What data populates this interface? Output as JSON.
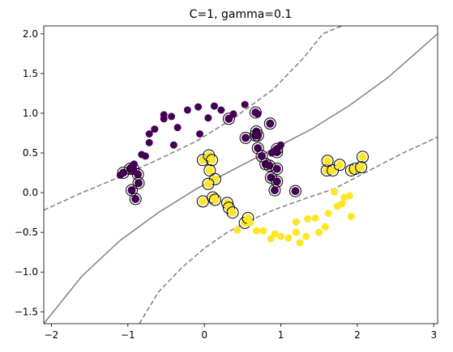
{
  "chart_data": {
    "type": "scatter",
    "title": "C=1, gamma=0.1",
    "xlabel": "",
    "ylabel": "",
    "xlim": [
      -2.1,
      3.05
    ],
    "ylim": [
      -1.65,
      2.1
    ],
    "xticks": [
      -2,
      -1,
      0,
      1,
      2,
      3
    ],
    "yticks": [
      -1.5,
      -1.0,
      -0.5,
      0.0,
      0.5,
      1.0,
      1.5,
      2.0
    ],
    "xtick_labels": [
      "−2",
      "−1",
      "0",
      "1",
      "2",
      "3"
    ],
    "ytick_labels": [
      "−1.5",
      "−1.0",
      "−0.5",
      "0.0",
      "0.5",
      "1.0",
      "1.5",
      "2.0"
    ],
    "grid": false,
    "colors": {
      "class_0": "#440154",
      "class_1": "#fde725",
      "decision_line": "#808080",
      "support_vector_edge": "#000000"
    },
    "decision_boundary": {
      "x": [
        -2.1,
        -1.6,
        -1.1,
        -0.6,
        -0.1,
        0.4,
        0.9,
        1.4,
        1.9,
        2.4,
        3.05
      ],
      "y": [
        -1.65,
        -1.05,
        -0.6,
        -0.25,
        0.05,
        0.3,
        0.55,
        0.8,
        1.1,
        1.45,
        2.0
      ]
    },
    "margin_upper": {
      "x": [
        -2.1,
        -1.6,
        -1.1,
        -0.6,
        -0.1,
        0.4,
        0.9,
        1.3,
        1.55,
        1.8
      ],
      "y": [
        -0.22,
        0.0,
        0.2,
        0.42,
        0.65,
        0.95,
        1.3,
        1.7,
        2.0,
        2.1
      ]
    },
    "margin_lower": {
      "x": [
        -0.85,
        -0.6,
        -0.3,
        0.0,
        0.3,
        0.6,
        0.9,
        1.3,
        1.7,
        2.2,
        2.6,
        3.05
      ],
      "y": [
        -1.65,
        -1.25,
        -0.95,
        -0.7,
        -0.5,
        -0.35,
        -0.22,
        -0.08,
        0.05,
        0.3,
        0.5,
        0.7
      ]
    },
    "series": [
      {
        "label_class": 0,
        "color": "#440154",
        "points": [
          [
            -1.1,
            0.22
          ],
          [
            -0.93,
            0.28
          ],
          [
            -0.92,
            0.36
          ],
          [
            -0.82,
            0.48
          ],
          [
            -0.77,
            0.46
          ],
          [
            -0.72,
            0.63
          ],
          [
            -0.72,
            0.74
          ],
          [
            -0.65,
            0.8
          ],
          [
            -0.53,
            0.93
          ],
          [
            -0.53,
            0.98
          ],
          [
            -0.43,
            0.96
          ],
          [
            -0.4,
            0.6
          ],
          [
            -0.35,
            0.82
          ],
          [
            -0.22,
            1.04
          ],
          [
            -0.08,
            1.08
          ],
          [
            -0.06,
            0.74
          ],
          [
            0.05,
            0.94
          ],
          [
            0.13,
            1.09
          ],
          [
            0.22,
            1.04
          ],
          [
            0.38,
            0.99
          ],
          [
            0.53,
            1.11
          ],
          [
            0.7,
            0.99
          ],
          [
            0.88,
            0.5
          ],
          [
            1.0,
            0.6
          ]
        ]
      },
      {
        "label_class": 1,
        "color": "#fde725",
        "points": [
          [
            0.43,
            -0.47
          ],
          [
            0.6,
            -0.38
          ],
          [
            0.68,
            -0.48
          ],
          [
            0.77,
            -0.48
          ],
          [
            0.87,
            -0.58
          ],
          [
            0.92,
            -0.52
          ],
          [
            1.0,
            -0.55
          ],
          [
            1.1,
            -0.57
          ],
          [
            1.2,
            -0.5
          ],
          [
            1.25,
            -0.63
          ],
          [
            1.2,
            -0.37
          ],
          [
            1.33,
            -0.55
          ],
          [
            1.35,
            -0.33
          ],
          [
            1.45,
            -0.32
          ],
          [
            1.5,
            -0.5
          ],
          [
            1.58,
            -0.43
          ],
          [
            1.62,
            -0.26
          ],
          [
            1.7,
            0.01
          ],
          [
            1.74,
            -0.17
          ],
          [
            1.8,
            -0.14
          ],
          [
            1.83,
            -0.06
          ],
          [
            1.9,
            -0.04
          ],
          [
            1.92,
            -0.3
          ]
        ]
      }
    ],
    "support_vectors": [
      [
        -1.06,
        0.25
      ],
      [
        -0.97,
        0.3
      ],
      [
        -0.93,
        0.3
      ],
      [
        -0.87,
        0.23
      ],
      [
        -0.86,
        0.12
      ],
      [
        -0.95,
        0.03
      ],
      [
        -0.9,
        -0.08
      ],
      [
        -0.02,
        0.41
      ],
      [
        0.06,
        0.47
      ],
      [
        0.07,
        0.28
      ],
      [
        0.1,
        0.41
      ],
      [
        0.14,
        0.17
      ],
      [
        0.05,
        0.11
      ],
      [
        -0.02,
        -0.11
      ],
      [
        0.11,
        -0.06
      ],
      [
        0.14,
        -0.09
      ],
      [
        0.3,
        -0.13
      ],
      [
        0.32,
        -0.19
      ],
      [
        0.37,
        -0.25
      ],
      [
        0.53,
        -0.38
      ],
      [
        0.57,
        -0.32
      ],
      [
        0.54,
        0.69
      ],
      [
        0.67,
        0.72
      ],
      [
        0.68,
        0.77
      ],
      [
        0.7,
        0.72
      ],
      [
        0.7,
        0.56
      ],
      [
        0.75,
        0.46
      ],
      [
        0.8,
        0.36
      ],
      [
        0.85,
        0.34
      ],
      [
        0.87,
        0.19
      ],
      [
        0.95,
        0.51
      ],
      [
        0.95,
        0.55
      ],
      [
        0.95,
        0.3
      ],
      [
        0.95,
        0.14
      ],
      [
        0.92,
        0.03
      ],
      [
        1.19,
        0.02
      ],
      [
        0.32,
        0.93
      ],
      [
        0.86,
        0.87
      ],
      [
        0.67,
        1.01
      ],
      [
        1.6,
        0.28
      ],
      [
        1.61,
        0.4
      ],
      [
        1.68,
        0.28
      ],
      [
        1.77,
        0.35
      ],
      [
        1.92,
        0.28
      ],
      [
        1.97,
        0.3
      ],
      [
        2.05,
        0.32
      ],
      [
        2.07,
        0.45
      ]
    ],
    "support_vector_classes": [
      0,
      0,
      0,
      0,
      0,
      0,
      0,
      1,
      1,
      1,
      1,
      1,
      1,
      1,
      1,
      1,
      1,
      1,
      1,
      1,
      1,
      0,
      0,
      0,
      0,
      0,
      0,
      0,
      0,
      0,
      0,
      0,
      0,
      0,
      0,
      0,
      0,
      0,
      0,
      1,
      1,
      1,
      1,
      1,
      1,
      1,
      1
    ]
  }
}
